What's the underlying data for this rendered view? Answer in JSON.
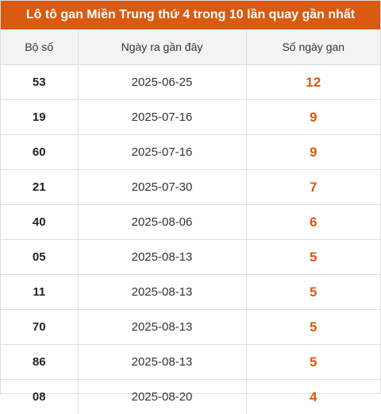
{
  "title": "Lô tô gan Miền Trung thứ 4 trong 10 lần quay gần nhất",
  "headers": [
    "Bộ số",
    "Ngày ra gần đây",
    "Số ngày gan"
  ],
  "rows": [
    {
      "number": "53",
      "date": "2025-06-25",
      "days": "12"
    },
    {
      "number": "19",
      "date": "2025-07-16",
      "days": "9"
    },
    {
      "number": "60",
      "date": "2025-07-16",
      "days": "9"
    },
    {
      "number": "21",
      "date": "2025-07-30",
      "days": "7"
    },
    {
      "number": "40",
      "date": "2025-08-06",
      "days": "6"
    },
    {
      "number": "05",
      "date": "2025-08-13",
      "days": "5"
    },
    {
      "number": "11",
      "date": "2025-08-13",
      "days": "5"
    },
    {
      "number": "70",
      "date": "2025-08-13",
      "days": "5"
    },
    {
      "number": "86",
      "date": "2025-08-13",
      "days": "5"
    },
    {
      "number": "08",
      "date": "2025-08-20",
      "days": "4"
    }
  ],
  "colors": {
    "accent": "#d95a10",
    "header_bg": "#f3f3f3"
  }
}
